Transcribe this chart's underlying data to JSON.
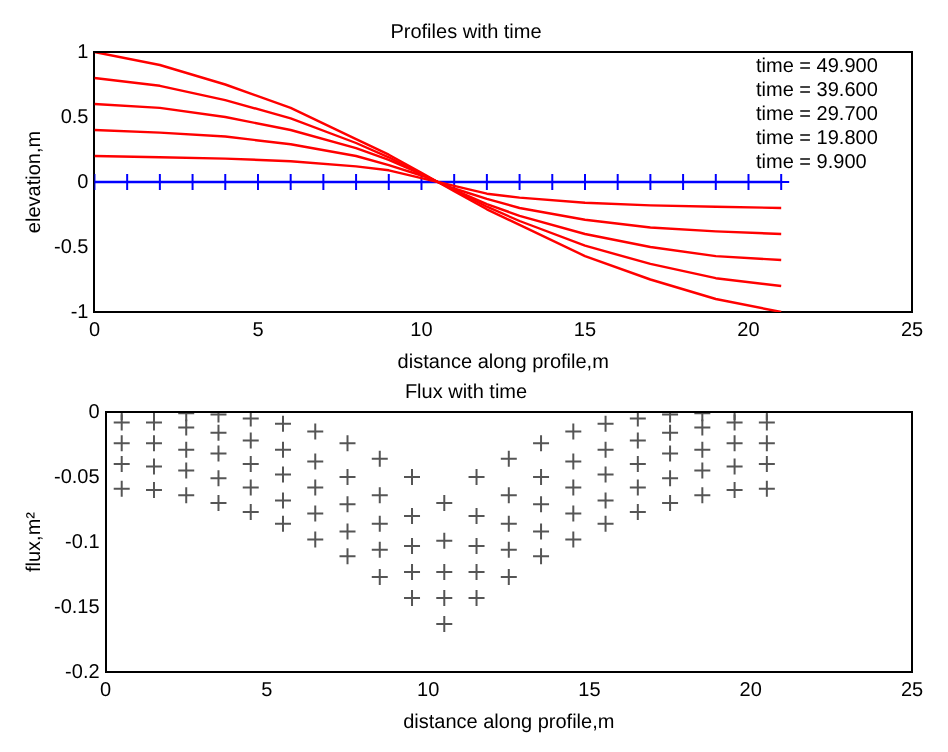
{
  "chart_data": [
    {
      "type": "line",
      "title": "Profiles with time",
      "xlabel": "distance along profile,m",
      "ylabel": "elevation,m",
      "xlim": [
        0,
        25
      ],
      "xticks": [
        0,
        5,
        10,
        15,
        20,
        25
      ],
      "ylim": [
        -1,
        1
      ],
      "yticks": [
        -1,
        -0.5,
        0,
        0.5,
        1
      ],
      "grid": false,
      "legend": false,
      "annotations": [
        "time = 49.900",
        "time = 39.600",
        "time = 29.700",
        "time = 19.800",
        "time = 9.900"
      ],
      "series": [
        {
          "type": "line",
          "color": "#ff0000",
          "marker": "none",
          "x": [
            0,
            2,
            4,
            6,
            8,
            9,
            10,
            10.5,
            11,
            12,
            13,
            15,
            17,
            19,
            21
          ],
          "values": [
            1,
            0.9,
            0.75,
            0.57,
            0.33,
            0.21,
            0.07,
            0,
            -0.07,
            -0.21,
            -0.33,
            -0.57,
            -0.75,
            -0.9,
            -1
          ]
        },
        {
          "type": "line",
          "color": "#ff0000",
          "marker": "none",
          "x": [
            0,
            2,
            4,
            6,
            8,
            9,
            10,
            10.5,
            11,
            12,
            13,
            15,
            17,
            19,
            21
          ],
          "values": [
            0.8,
            0.74,
            0.63,
            0.49,
            0.3,
            0.19,
            0.06,
            0,
            -0.06,
            -0.19,
            -0.3,
            -0.49,
            -0.63,
            -0.74,
            -0.8
          ]
        },
        {
          "type": "line",
          "color": "#ff0000",
          "marker": "none",
          "x": [
            0,
            2,
            4,
            6,
            8,
            9,
            10,
            10.5,
            11,
            12,
            13,
            15,
            17,
            19,
            21
          ],
          "values": [
            0.6,
            0.57,
            0.5,
            0.4,
            0.26,
            0.17,
            0.06,
            0,
            -0.06,
            -0.17,
            -0.26,
            -0.4,
            -0.5,
            -0.57,
            -0.6
          ]
        },
        {
          "type": "line",
          "color": "#ff0000",
          "marker": "none",
          "x": [
            0,
            2,
            4,
            6,
            8,
            9,
            10,
            10.5,
            11,
            12,
            13,
            15,
            17,
            19,
            21
          ],
          "values": [
            0.4,
            0.38,
            0.35,
            0.29,
            0.2,
            0.13,
            0.05,
            0,
            -0.05,
            -0.13,
            -0.2,
            -0.29,
            -0.35,
            -0.38,
            -0.4
          ]
        },
        {
          "type": "line",
          "color": "#ff0000",
          "marker": "none",
          "x": [
            0,
            2,
            4,
            6,
            8,
            9,
            10,
            10.5,
            11,
            12,
            13,
            15,
            17,
            19,
            21
          ],
          "values": [
            0.2,
            0.19,
            0.18,
            0.16,
            0.12,
            0.09,
            0.03,
            0,
            -0.03,
            -0.09,
            -0.12,
            -0.16,
            -0.18,
            -0.19,
            -0.2
          ]
        },
        {
          "type": "line",
          "color": "#0000ff",
          "marker": "cross",
          "x": [
            0,
            1,
            2,
            3,
            4,
            5,
            6,
            7,
            8,
            9,
            10,
            11,
            12,
            13,
            14,
            15,
            16,
            17,
            18,
            19,
            20,
            21
          ],
          "values": [
            0,
            0,
            0,
            0,
            0,
            0,
            0,
            0,
            0,
            0,
            0,
            0,
            0,
            0,
            0,
            0,
            0,
            0,
            0,
            0,
            0,
            0
          ]
        }
      ]
    },
    {
      "type": "scatter",
      "title": "Flux with time",
      "xlabel": "distance along profile,m",
      "ylabel": "flux,m²",
      "xlim": [
        0,
        25
      ],
      "xticks": [
        0,
        5,
        10,
        15,
        20,
        25
      ],
      "ylim": [
        -0.2,
        0
      ],
      "yticks": [
        -0.2,
        -0.15,
        -0.1,
        -0.05,
        0
      ],
      "grid": false,
      "legend": false,
      "marker": "cross",
      "x": [
        0.5,
        1.5,
        2.5,
        3.5,
        4.5,
        5.5,
        6.5,
        7.5,
        8.5,
        9.5,
        10.5,
        11.5,
        12.5,
        13.5,
        14.5,
        15.5,
        16.5,
        17.5,
        18.5,
        19.5,
        20.5
      ],
      "series": [
        {
          "color": "#555555",
          "values": [
            0,
            0,
            -0.001,
            -0.002,
            -0.005,
            -0.009,
            -0.015,
            -0.024,
            -0.036,
            -0.05,
            -0.07,
            -0.05,
            -0.036,
            -0.024,
            -0.015,
            -0.009,
            -0.005,
            -0.002,
            -0.001,
            0,
            0
          ]
        },
        {
          "color": "#555555",
          "values": [
            -0.008,
            -0.008,
            -0.012,
            -0.016,
            -0.022,
            -0.029,
            -0.038,
            -0.05,
            -0.064,
            -0.08,
            -0.099,
            -0.08,
            -0.064,
            -0.05,
            -0.038,
            -0.029,
            -0.022,
            -0.016,
            -0.012,
            -0.008,
            -0.008
          ]
        },
        {
          "color": "#555555",
          "values": [
            -0.024,
            -0.024,
            -0.029,
            -0.032,
            -0.04,
            -0.048,
            -0.058,
            -0.071,
            -0.086,
            -0.103,
            -0.123,
            -0.103,
            -0.086,
            -0.071,
            -0.058,
            -0.048,
            -0.04,
            -0.032,
            -0.029,
            -0.024,
            -0.024
          ]
        },
        {
          "color": "#555555",
          "values": [
            -0.04,
            -0.042,
            -0.045,
            -0.051,
            -0.058,
            -0.068,
            -0.078,
            -0.092,
            -0.106,
            -0.123,
            -0.143,
            -0.123,
            -0.106,
            -0.092,
            -0.078,
            -0.068,
            -0.058,
            -0.051,
            -0.045,
            -0.042,
            -0.04
          ]
        },
        {
          "color": "#555555",
          "values": [
            -0.059,
            -0.06,
            -0.064,
            -0.07,
            -0.077,
            -0.086,
            -0.098,
            -0.111,
            -0.127,
            -0.143,
            -0.163,
            -0.143,
            -0.127,
            -0.111,
            -0.098,
            -0.086,
            -0.077,
            -0.07,
            -0.064,
            -0.06,
            -0.059
          ]
        }
      ]
    }
  ]
}
